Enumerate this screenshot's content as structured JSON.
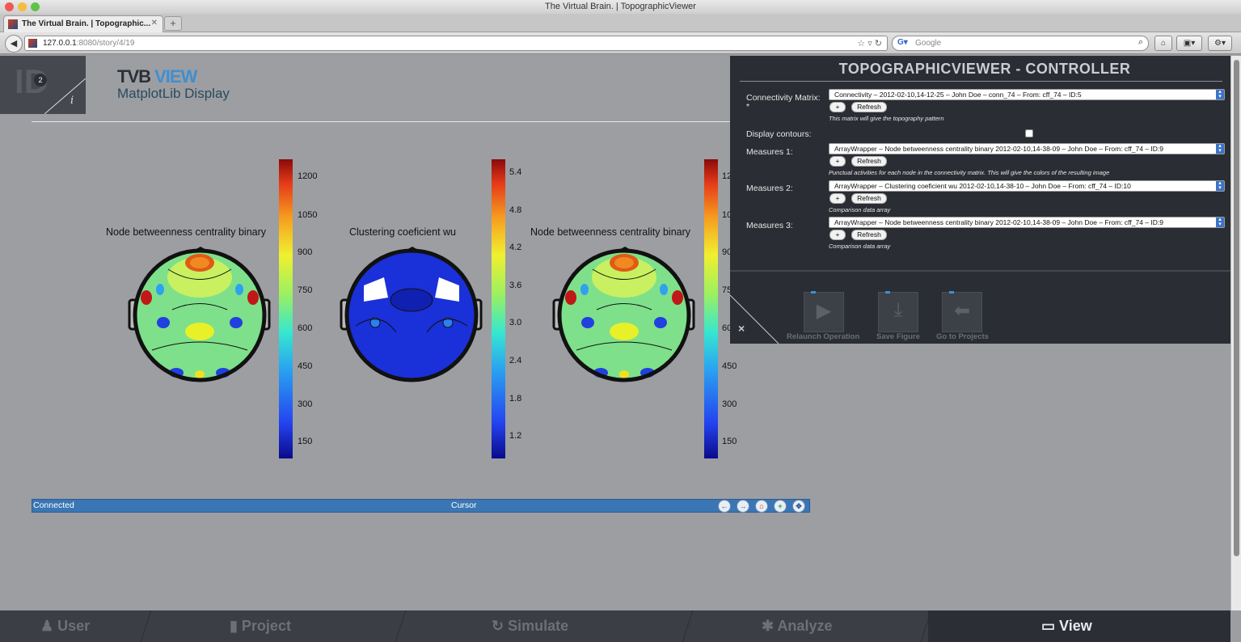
{
  "window": {
    "title": "The Virtual Brain. | TopographicViewer"
  },
  "tabs": [
    {
      "label": "The Virtual Brain. | Topographic..."
    }
  ],
  "url": {
    "host": "127.0.0.1",
    "path": ":8080/story/4/19"
  },
  "search": {
    "placeholder": "Google"
  },
  "app": {
    "badge_number": "2",
    "title_a": "TVB",
    "title_b": "VIEW",
    "subtitle": "MatplotLib Display"
  },
  "plots": [
    {
      "title": "Node betweenness centrality binary",
      "ticks": [
        "1200",
        "1050",
        "900",
        "750",
        "600",
        "450",
        "300",
        "150"
      ]
    },
    {
      "title": "Clustering coeficient wu",
      "ticks": [
        "5.4",
        "4.8",
        "4.2",
        "3.6",
        "3.0",
        "2.4",
        "1.8",
        "1.2"
      ]
    },
    {
      "title": "Node betweenness centrality binary",
      "ticks": [
        "12",
        "10",
        "90",
        "75",
        "60",
        "450",
        "300",
        "150"
      ]
    }
  ],
  "statusbar": {
    "left": "Connected",
    "center": "Cursor"
  },
  "controller": {
    "title": "TOPOGRAPHICVIEWER - CONTROLLER",
    "fields": [
      {
        "label": "Connectivity Matrix:",
        "value": "Connectivity – 2012-02-10,14-12-25 – John Doe – conn_74 – From: cff_74 – ID:5",
        "help": "This matrix will give the topography pattern"
      },
      {
        "label": "Display contours:"
      },
      {
        "label": "Measures 1:",
        "value": "ArrayWrapper – Node betweenness centrality binary 2012-02-10,14-38-09 – John Doe – From: cff_74 – ID:9",
        "help": "Punctual activities for each node in the connectivity matrix. This will give the colors of the resulting image"
      },
      {
        "label": "Measures 2:",
        "value": "ArrayWrapper – Clustering coeficient wu 2012-02-10,14-38-10 – John Doe – From: cff_74 – ID:10",
        "help": "Comparison data array"
      },
      {
        "label": "Measures 3:",
        "value": "ArrayWrapper – Node betweenness centrality binary 2012-02-10,14-38-09 – John Doe – From: cff_74 – ID:9",
        "help": "Comparison data array"
      }
    ],
    "add_label": "+",
    "refresh_label": "Refresh",
    "required_mark": "*",
    "close_label": "×",
    "actions": [
      {
        "label": "Relaunch Operation"
      },
      {
        "label": "Save Figure"
      },
      {
        "label": "Go to Projects"
      }
    ]
  },
  "bottom_nav": [
    {
      "label": "User"
    },
    {
      "label": "Project"
    },
    {
      "label": "Simulate"
    },
    {
      "label": "Analyze"
    },
    {
      "label": "View"
    }
  ],
  "colors": {
    "accent": "#3f8fd1",
    "panel": "#2a2d33",
    "statusbar": "#3a76b4"
  }
}
